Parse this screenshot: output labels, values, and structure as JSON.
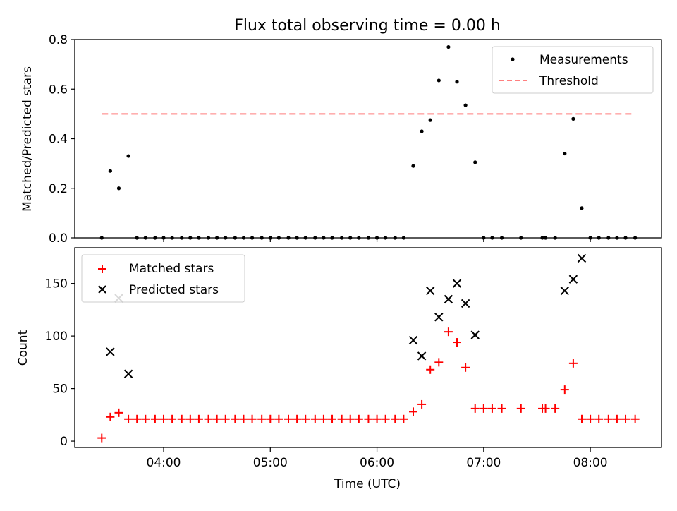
{
  "figure": {
    "title": "Flux total observing time = 0.00 h"
  },
  "chart_data": [
    {
      "type": "scatter",
      "title": "Flux total observing time = 0.00 h",
      "xlabel": "",
      "ylabel": "Matched/Predicted stars",
      "x_unit": "hours (UTC)",
      "xlim": [
        3.167,
        8.667
      ],
      "ylim": [
        0,
        0.8
      ],
      "yticks": [
        0,
        0.2,
        0.4,
        0.6,
        0.8
      ],
      "ytick_labels": [
        "0.0",
        "0.2",
        "0.4",
        "0.6",
        "0.8"
      ],
      "grid": false,
      "legend_position": "upper right",
      "series": [
        {
          "name": "Measurements",
          "kind": "scatter",
          "color": "#000000",
          "points": [
            [
              3.42,
              0
            ],
            [
              3.5,
              0.27
            ],
            [
              3.58,
              0.2
            ],
            [
              3.67,
              0.33
            ],
            [
              3.75,
              0
            ],
            [
              3.83,
              0
            ],
            [
              3.92,
              0
            ],
            [
              4.0,
              0
            ],
            [
              4.08,
              0
            ],
            [
              4.17,
              0
            ],
            [
              4.25,
              0
            ],
            [
              4.33,
              0
            ],
            [
              4.42,
              0
            ],
            [
              4.5,
              0
            ],
            [
              4.58,
              0
            ],
            [
              4.67,
              0
            ],
            [
              4.75,
              0
            ],
            [
              4.83,
              0
            ],
            [
              4.92,
              0
            ],
            [
              5.0,
              0
            ],
            [
              5.08,
              0
            ],
            [
              5.17,
              0
            ],
            [
              5.25,
              0
            ],
            [
              5.33,
              0
            ],
            [
              5.42,
              0
            ],
            [
              5.5,
              0
            ],
            [
              5.58,
              0
            ],
            [
              5.67,
              0
            ],
            [
              5.75,
              0
            ],
            [
              5.83,
              0
            ],
            [
              5.92,
              0
            ],
            [
              6.0,
              0
            ],
            [
              6.08,
              0
            ],
            [
              6.17,
              0
            ],
            [
              6.25,
              0
            ],
            [
              6.34,
              0.29
            ],
            [
              6.42,
              0.43
            ],
            [
              6.5,
              0.475
            ],
            [
              6.58,
              0.635
            ],
            [
              6.67,
              0.77
            ],
            [
              6.75,
              0.63
            ],
            [
              6.83,
              0.535
            ],
            [
              6.92,
              0.305
            ],
            [
              7.0,
              0
            ],
            [
              7.08,
              0
            ],
            [
              7.17,
              0
            ],
            [
              7.35,
              0
            ],
            [
              7.55,
              0
            ],
            [
              7.58,
              0
            ],
            [
              7.67,
              0
            ],
            [
              7.76,
              0.34
            ],
            [
              7.84,
              0.48
            ],
            [
              7.92,
              0.12
            ],
            [
              8.0,
              0
            ],
            [
              8.08,
              0
            ],
            [
              8.17,
              0
            ],
            [
              8.25,
              0
            ],
            [
              8.33,
              0
            ],
            [
              8.42,
              0
            ]
          ]
        },
        {
          "name": "Threshold",
          "kind": "line",
          "style": "dashed",
          "color": "#ff7f7f",
          "points": [
            [
              3.42,
              0.5
            ],
            [
              8.42,
              0.5
            ]
          ]
        }
      ]
    },
    {
      "type": "scatter",
      "xlabel": "Time (UTC)",
      "ylabel": "Count",
      "x_unit": "hours (UTC)",
      "xlim": [
        3.167,
        8.667
      ],
      "ylim": [
        -6,
        184
      ],
      "xticks": [
        4,
        5,
        6,
        7,
        8
      ],
      "xtick_labels": [
        "04:00",
        "05:00",
        "06:00",
        "07:00",
        "08:00"
      ],
      "yticks": [
        0,
        50,
        100,
        150
      ],
      "ytick_labels": [
        "0",
        "50",
        "100",
        "150"
      ],
      "grid": false,
      "legend_position": "upper left",
      "series": [
        {
          "name": "Matched stars",
          "marker": "plus",
          "color": "#ff0000",
          "points": [
            [
              3.42,
              3
            ],
            [
              3.5,
              23
            ],
            [
              3.58,
              27
            ],
            [
              3.67,
              21
            ],
            [
              3.75,
              21
            ],
            [
              3.83,
              21
            ],
            [
              3.92,
              21
            ],
            [
              4.0,
              21
            ],
            [
              4.08,
              21
            ],
            [
              4.17,
              21
            ],
            [
              4.25,
              21
            ],
            [
              4.33,
              21
            ],
            [
              4.42,
              21
            ],
            [
              4.5,
              21
            ],
            [
              4.58,
              21
            ],
            [
              4.67,
              21
            ],
            [
              4.75,
              21
            ],
            [
              4.83,
              21
            ],
            [
              4.92,
              21
            ],
            [
              5.0,
              21
            ],
            [
              5.08,
              21
            ],
            [
              5.17,
              21
            ],
            [
              5.25,
              21
            ],
            [
              5.33,
              21
            ],
            [
              5.42,
              21
            ],
            [
              5.5,
              21
            ],
            [
              5.58,
              21
            ],
            [
              5.67,
              21
            ],
            [
              5.75,
              21
            ],
            [
              5.83,
              21
            ],
            [
              5.92,
              21
            ],
            [
              6.0,
              21
            ],
            [
              6.08,
              21
            ],
            [
              6.17,
              21
            ],
            [
              6.25,
              21
            ],
            [
              6.34,
              28
            ],
            [
              6.42,
              35
            ],
            [
              6.5,
              68
            ],
            [
              6.58,
              75
            ],
            [
              6.67,
              104
            ],
            [
              6.75,
              94
            ],
            [
              6.83,
              70
            ],
            [
              6.92,
              31
            ],
            [
              7.0,
              31
            ],
            [
              7.08,
              31
            ],
            [
              7.17,
              31
            ],
            [
              7.35,
              31
            ],
            [
              7.55,
              31
            ],
            [
              7.58,
              31
            ],
            [
              7.67,
              31
            ],
            [
              7.76,
              49
            ],
            [
              7.84,
              74
            ],
            [
              7.92,
              21
            ],
            [
              8.0,
              21
            ],
            [
              8.08,
              21
            ],
            [
              8.17,
              21
            ],
            [
              8.25,
              21
            ],
            [
              8.33,
              21
            ],
            [
              8.42,
              21
            ]
          ]
        },
        {
          "name": "Predicted stars",
          "marker": "x",
          "color": "#000000",
          "points": [
            [
              3.5,
              85
            ],
            [
              3.58,
              136
            ],
            [
              3.67,
              64
            ],
            [
              6.34,
              96
            ],
            [
              6.42,
              81
            ],
            [
              6.5,
              143
            ],
            [
              6.58,
              118
            ],
            [
              6.67,
              135
            ],
            [
              6.75,
              150
            ],
            [
              6.83,
              131
            ],
            [
              6.92,
              101
            ],
            [
              7.76,
              143
            ],
            [
              7.84,
              154
            ],
            [
              7.92,
              174
            ]
          ]
        }
      ]
    }
  ]
}
